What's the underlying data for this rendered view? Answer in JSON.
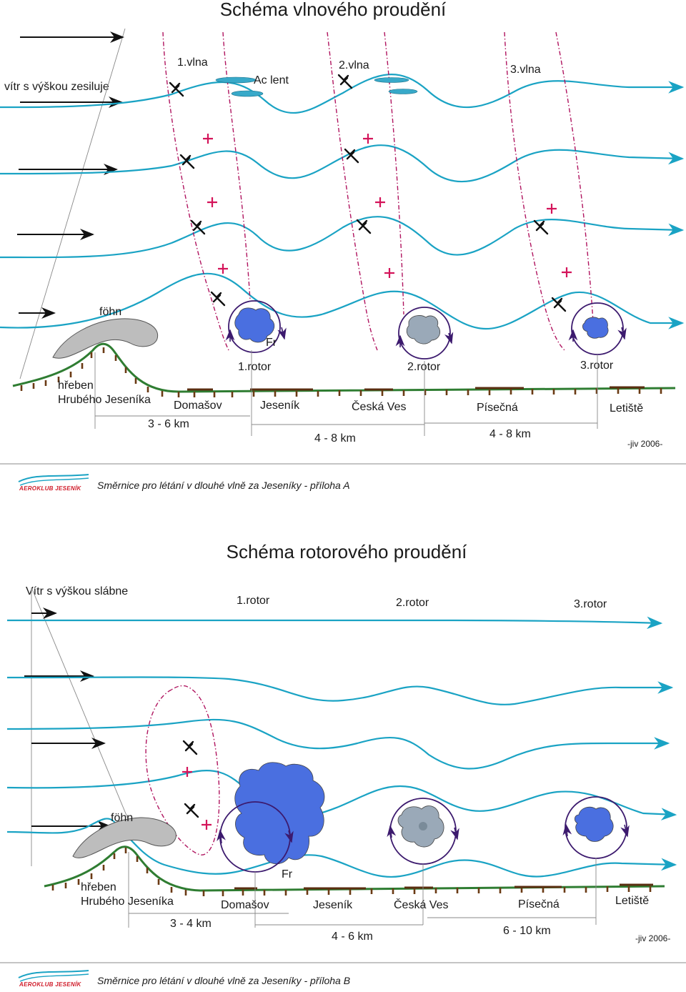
{
  "wave": {
    "title": "Schéma vlnového proudění",
    "wind_note": "vítr s výškou zesiluje",
    "wave_labels": [
      "1.vlna",
      "2.vlna",
      "3.vlna"
    ],
    "cloud_label": "Ac lent",
    "foehn_label": "föhn",
    "fr_label": "Fr",
    "rotor_labels": [
      "1.rotor",
      "2.rotor",
      "3.rotor"
    ],
    "ridge_label_1": "hřeben",
    "ridge_label_2": "Hrubého Jeseníka",
    "places": [
      "Domašov",
      "Jeseník",
      "Česká Ves",
      "Písečná",
      "Letiště"
    ],
    "distances": [
      "3 - 6 km",
      "4 - 8 km",
      "4 - 8 km"
    ],
    "author": "-jiv 2006-",
    "footer": "Směrnice pro létání v dlouhé vlně za Jeseníky - příloha A",
    "logo": "AEROKLUB JESENÍK"
  },
  "rotor": {
    "title": "Schéma rotorového proudění",
    "wind_note": "Vítr s výškou slábne",
    "rotor_labels": [
      "1.rotor",
      "2.rotor",
      "3.rotor"
    ],
    "foehn_label": "föhn",
    "fr_label": "Fr",
    "ridge_label_1": "hřeben",
    "ridge_label_2": "Hrubého Jeseníka",
    "places": [
      "Domašov",
      "Jeseník",
      "Česká Ves",
      "Písečná",
      "Letiště"
    ],
    "distances": [
      "3 - 4 km",
      "4 - 6 km",
      "6 - 10 km"
    ],
    "author": "-jiv 2006-",
    "footer": "Směrnice pro létání v dlouhé vlně za Jeseníky - příloha B",
    "logo": "AEROKLUB JESENÍK"
  },
  "colors": {
    "streamline": "#1aa3c4",
    "wave_axis": "#b0145f",
    "ridge": "#2f7d32",
    "lift": "#d4145a",
    "cloud": "#4a6fe0"
  }
}
